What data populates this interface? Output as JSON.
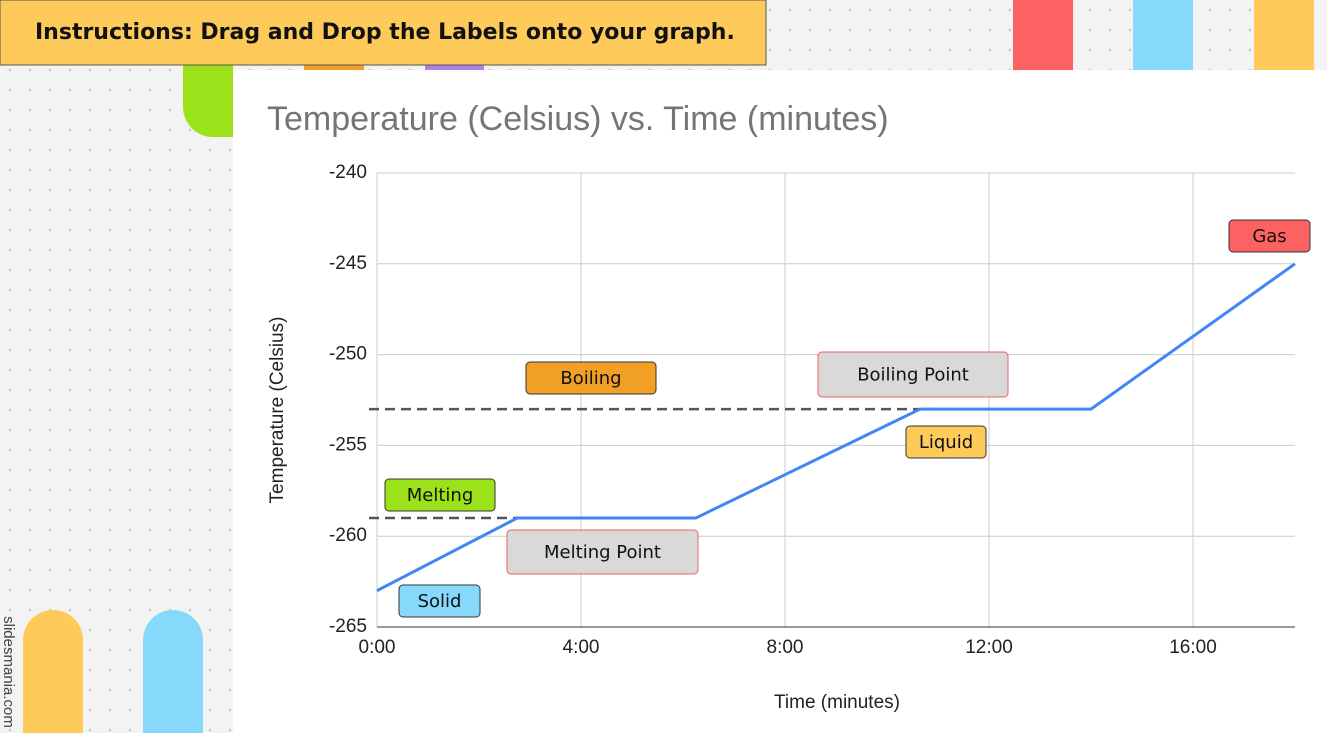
{
  "instructions": "Instructions: Drag and Drop the Labels onto your graph.",
  "credit": "slidesmania.com",
  "labels": [
    "Solid",
    "Melting",
    "Melting Point",
    "Boiling",
    "Boiling Point",
    "Liquid",
    "Gas"
  ],
  "chart_data": {
    "type": "line",
    "title": "Temperature (Celsius) vs. Time (minutes)",
    "x_label": "Time (minutes)",
    "y_label": "Temperature (Celsius)",
    "x": [
      0,
      2.75,
      6.25,
      10.65,
      14,
      18
    ],
    "series": [
      {
        "color": "#4285f4",
        "values": [
          -263,
          -259,
          -259,
          -253,
          -253,
          -245
        ]
      }
    ],
    "xlim": [
      0,
      18
    ],
    "xticks": [
      {
        "value": 0,
        "label": "0:00"
      },
      {
        "value": 4,
        "label": "4:00"
      },
      {
        "value": 8,
        "label": "8:00"
      },
      {
        "value": 12,
        "label": "12:00"
      },
      {
        "value": 16,
        "label": "16:00"
      }
    ],
    "ylim": [
      -265,
      -240
    ],
    "yticks": [
      -240,
      -245,
      -250,
      -255,
      -260,
      -265
    ],
    "grid": true,
    "reference_lines": [
      {
        "value": -259,
        "xlim": [
          0,
          2.75
        ]
      },
      {
        "value": -253,
        "xlim": [
          0,
          11.2
        ]
      }
    ]
  }
}
